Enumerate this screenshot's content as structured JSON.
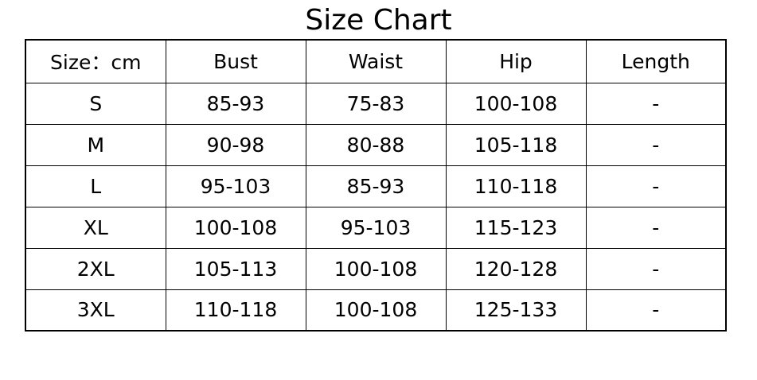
{
  "title": "Size Chart",
  "chart_data": {
    "type": "table",
    "title": "Size Chart",
    "columns": [
      "Size：cm",
      "Bust",
      "Waist",
      "Hip",
      "Length"
    ],
    "rows": [
      [
        "S",
        "85-93",
        "75-83",
        "100-108",
        "-"
      ],
      [
        "M",
        "90-98",
        "80-88",
        "105-118",
        "-"
      ],
      [
        "L",
        "95-103",
        "85-93",
        "110-118",
        "-"
      ],
      [
        "XL",
        "100-108",
        "95-103",
        "115-123",
        "-"
      ],
      [
        "2XL",
        "105-113",
        "100-108",
        "120-128",
        "-"
      ],
      [
        "3XL",
        "110-118",
        "100-108",
        "125-133",
        "-"
      ]
    ]
  }
}
